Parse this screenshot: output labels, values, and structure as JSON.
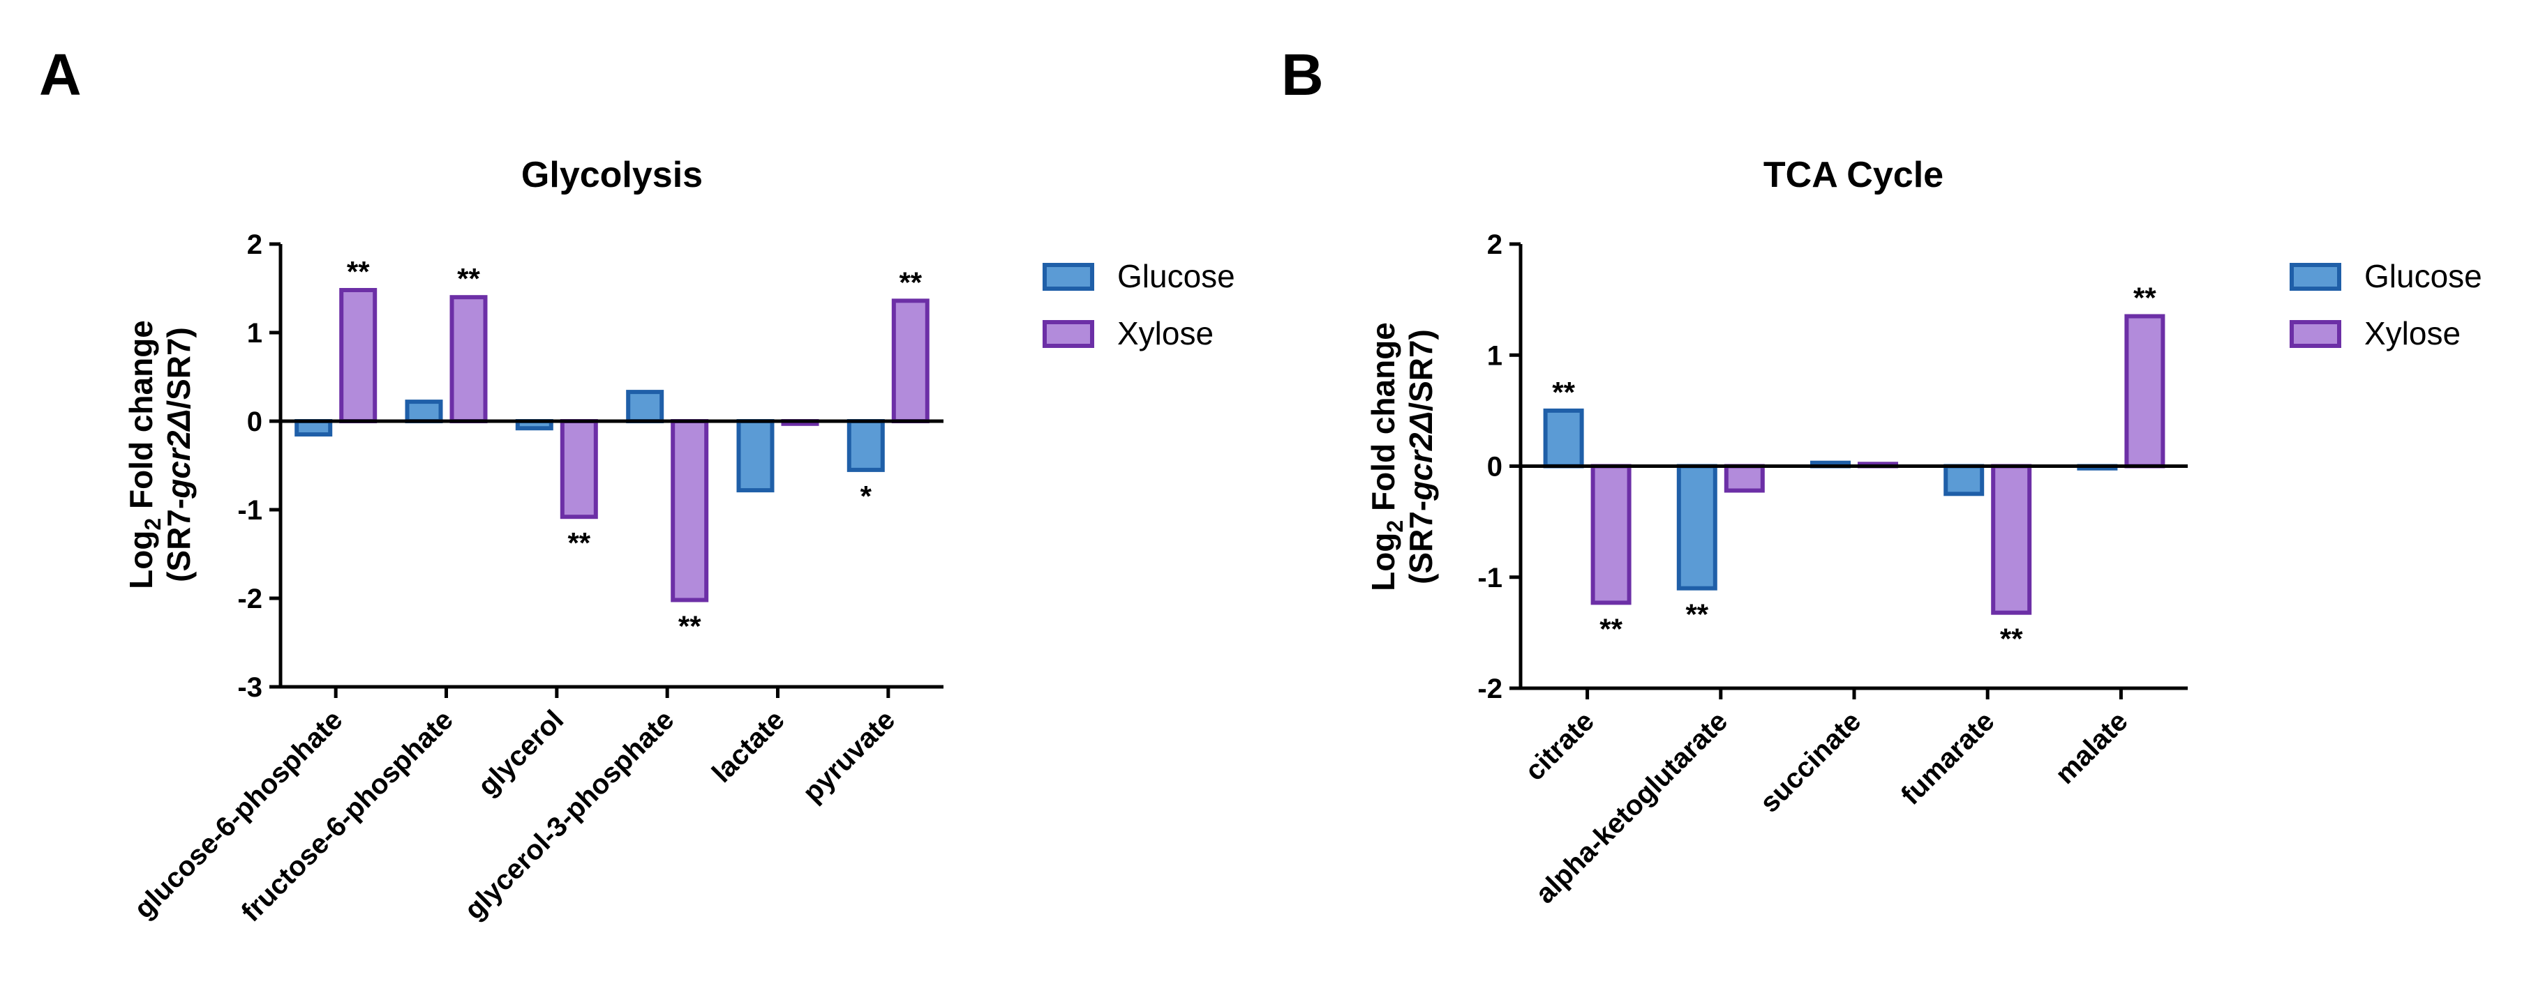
{
  "colors": {
    "glucose_fill": "#5B9BD5",
    "glucose_stroke": "#1F5FA8",
    "xylose_fill": "#B28BDB",
    "xylose_stroke": "#6C2FA6",
    "axis": "#000000"
  },
  "chart_data": [
    {
      "panel": "A",
      "type": "bar",
      "title": "Glycolysis",
      "ylabel_line1_prefix": "Log",
      "ylabel_line1_sub": "2",
      "ylabel_line1_suffix": " Fold change",
      "ylabel_line2_a": "(SR7-",
      "ylabel_line2_italic": "gcr2Δ",
      "ylabel_line2_b": "/SR7)",
      "ylim": [
        -3,
        2
      ],
      "yticks": [
        2,
        1,
        0,
        -1,
        -2,
        -3
      ],
      "ytick_labels": [
        "2",
        "1",
        "0",
        "-1",
        "-2",
        "-3"
      ],
      "categories": [
        "glucose-6-phosphate",
        "fructose-6-phosphate",
        "glycerol",
        "glycerol-3-phosphate",
        "lactate",
        "pyruvate"
      ],
      "series": [
        {
          "name": "Glucose",
          "values": [
            -0.15,
            0.22,
            -0.08,
            0.33,
            -0.78,
            -0.55
          ],
          "sig": [
            "",
            "",
            "",
            "",
            "",
            "*"
          ]
        },
        {
          "name": "Xylose",
          "values": [
            1.48,
            1.4,
            -1.08,
            -2.02,
            -0.03,
            1.36
          ],
          "sig": [
            "**",
            "**",
            "**",
            "**",
            "",
            "**"
          ]
        }
      ],
      "legend": [
        "Glucose",
        "Xylose"
      ]
    },
    {
      "panel": "B",
      "type": "bar",
      "title": "TCA Cycle",
      "ylabel_line1_prefix": "Log",
      "ylabel_line1_sub": "2",
      "ylabel_line1_suffix": " Fold change",
      "ylabel_line2_a": "(SR7-",
      "ylabel_line2_italic": "gcr2Δ",
      "ylabel_line2_b": "/SR7)",
      "ylim": [
        -2,
        2
      ],
      "yticks": [
        2,
        1,
        0,
        -1,
        -2
      ],
      "ytick_labels": [
        "2",
        "1",
        "0",
        "-1",
        "-2"
      ],
      "categories": [
        "citrate",
        "alpha-ketoglutarate",
        "succinate",
        "fumarate",
        "malate"
      ],
      "series": [
        {
          "name": "Glucose",
          "values": [
            0.5,
            -1.1,
            0.03,
            -0.25,
            -0.02
          ],
          "sig": [
            "**",
            "**",
            "",
            "",
            ""
          ]
        },
        {
          "name": "Xylose",
          "values": [
            -1.23,
            -0.22,
            0.02,
            -1.32,
            1.35
          ],
          "sig": [
            "**",
            "",
            "",
            "**",
            "**"
          ]
        }
      ],
      "legend": [
        "Glucose",
        "Xylose"
      ]
    }
  ]
}
